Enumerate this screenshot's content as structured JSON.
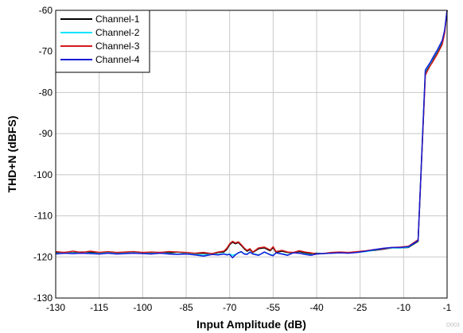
{
  "chart_data": {
    "type": "line",
    "xlabel": "Input Amplitude (dB)",
    "ylabel": "THD+N (dBFS)",
    "xlim": [
      -130,
      -1
    ],
    "ylim": [
      -130,
      -60
    ],
    "xticks": [
      -130,
      -115,
      -100,
      -85,
      -70,
      -55,
      -40,
      -25,
      -10,
      -1
    ],
    "xtick_labels": [
      "-130",
      "-115",
      "-100",
      "-85",
      "-70",
      "-55",
      "-40",
      "-25",
      "-10",
      "-1"
    ],
    "yticks": [
      -130,
      -120,
      -110,
      -100,
      -90,
      -80,
      -70,
      -60
    ],
    "ytick_labels": [
      "-130",
      "-120",
      "-110",
      "-100",
      "-90",
      "-80",
      "-70",
      "-60"
    ],
    "grid": true,
    "legend_position": "top-left",
    "watermark": "D003",
    "series": [
      {
        "name": "Channel-1",
        "color": "#000000",
        "x": [
          -130,
          -127,
          -124,
          -121,
          -118,
          -115,
          -112,
          -109,
          -106,
          -103,
          -100,
          -97,
          -94,
          -91,
          -88,
          -85,
          -82,
          -79,
          -76,
          -74,
          -72,
          -71,
          -70,
          -69,
          -68,
          -67,
          -66,
          -65,
          -64,
          -63,
          -62,
          -60,
          -58,
          -56,
          -55,
          -54,
          -52,
          -50,
          -48,
          -46,
          -44,
          -42,
          -40,
          -38,
          -35,
          -32,
          -29,
          -26,
          -23,
          -20,
          -17,
          -14,
          -11,
          -9,
          -7,
          -5.5,
          -5,
          -4.5,
          -4,
          -3,
          -2,
          -1.5,
          -1
        ],
        "y": [
          -119,
          -118.9,
          -119,
          -118.8,
          -118.9,
          -119,
          -118.9,
          -119.1,
          -118.9,
          -118.8,
          -119,
          -119,
          -118.9,
          -119,
          -118.8,
          -119,
          -119.2,
          -119.1,
          -119.3,
          -118.9,
          -118.8,
          -118.2,
          -117,
          -116.4,
          -116.8,
          -116.5,
          -117.2,
          -118,
          -118.6,
          -118.2,
          -118.9,
          -118,
          -117.8,
          -118.5,
          -117.7,
          -118.9,
          -118.6,
          -118.9,
          -119,
          -118.7,
          -119,
          -119.2,
          -119.1,
          -119.2,
          -119,
          -118.9,
          -119,
          -118.8,
          -118.6,
          -118.4,
          -118.1,
          -117.8,
          -117.8,
          -117.7,
          -116.2,
          -75,
          -74,
          -73,
          -72,
          -70,
          -68,
          -65,
          -60
        ]
      },
      {
        "name": "Channel-2",
        "color": "#00e5ff",
        "x": [
          -130,
          -127,
          -124,
          -121,
          -118,
          -115,
          -112,
          -109,
          -106,
          -103,
          -100,
          -97,
          -94,
          -91,
          -88,
          -85,
          -82,
          -79,
          -76,
          -74,
          -72,
          -71,
          -70,
          -69,
          -68,
          -67,
          -66,
          -65,
          -64,
          -63,
          -62,
          -60,
          -58,
          -56,
          -55,
          -54,
          -52,
          -50,
          -48,
          -46,
          -44,
          -42,
          -40,
          -38,
          -35,
          -32,
          -29,
          -26,
          -23,
          -20,
          -17,
          -14,
          -11,
          -9,
          -7,
          -5.5,
          -5,
          -4.5,
          -4,
          -3,
          -2,
          -1.5,
          -1
        ],
        "y": [
          -119.2,
          -119,
          -119.1,
          -119,
          -119.1,
          -119.2,
          -119,
          -119.2,
          -119.1,
          -119,
          -119.1,
          -119.2,
          -119,
          -119.2,
          -119.3,
          -119.2,
          -119.4,
          -119.6,
          -119.3,
          -119.4,
          -119.2,
          -119.4,
          -119.3,
          -119.6,
          -119.4,
          -119,
          -118.8,
          -119.2,
          -119.3,
          -118.9,
          -119.2,
          -119.5,
          -118.9,
          -119.4,
          -119.6,
          -119,
          -119.2,
          -119.5,
          -119,
          -119.1,
          -119.3,
          -119.5,
          -119.2,
          -119.2,
          -119.1,
          -119,
          -119,
          -118.9,
          -118.7,
          -118.3,
          -118,
          -117.8,
          -117.8,
          -117.6,
          -116,
          -74.8,
          -73.8,
          -72.9,
          -71.8,
          -69.8,
          -67.5,
          -65,
          -60
        ]
      },
      {
        "name": "Channel-3",
        "color": "#d41a1a",
        "x": [
          -130,
          -127,
          -124,
          -121,
          -118,
          -115,
          -112,
          -109,
          -106,
          -103,
          -100,
          -97,
          -94,
          -91,
          -88,
          -85,
          -82,
          -79,
          -76,
          -74,
          -72,
          -71,
          -70,
          -69,
          -68,
          -67,
          -66,
          -65,
          -64,
          -63,
          -62,
          -60,
          -58,
          -56,
          -55,
          -54,
          -52,
          -50,
          -48,
          -46,
          -44,
          -42,
          -40,
          -38,
          -35,
          -32,
          -29,
          -26,
          -23,
          -20,
          -17,
          -14,
          -11,
          -9,
          -7,
          -5.5,
          -5,
          -4.5,
          -4,
          -3,
          -2,
          -1.5,
          -1
        ],
        "y": [
          -118.7,
          -118.9,
          -118.6,
          -118.9,
          -118.6,
          -118.9,
          -118.7,
          -118.9,
          -118.8,
          -118.7,
          -118.9,
          -118.8,
          -118.9,
          -118.7,
          -118.8,
          -118.9,
          -119.1,
          -118.9,
          -119.2,
          -118.8,
          -118.6,
          -117.9,
          -116.8,
          -116.2,
          -116.6,
          -116.3,
          -117,
          -117.8,
          -118.4,
          -118,
          -118.8,
          -117.8,
          -117.6,
          -118.3,
          -117.5,
          -118.7,
          -118.4,
          -118.8,
          -118.9,
          -118.5,
          -118.8,
          -119,
          -119.3,
          -119.2,
          -118.9,
          -118.8,
          -118.9,
          -118.7,
          -118.5,
          -118.2,
          -118,
          -117.7,
          -117.6,
          -117.4,
          -115.8,
          -75.8,
          -74.6,
          -73.5,
          -72.6,
          -70.6,
          -68.3,
          -65.5,
          -60
        ]
      },
      {
        "name": "Channel-4",
        "color": "#1a1ad4",
        "x": [
          -130,
          -127,
          -124,
          -121,
          -118,
          -115,
          -112,
          -109,
          -106,
          -103,
          -100,
          -97,
          -94,
          -91,
          -88,
          -85,
          -82,
          -79,
          -76,
          -74,
          -72,
          -71,
          -70,
          -69,
          -68,
          -67,
          -66,
          -65,
          -64,
          -63,
          -62,
          -60,
          -58,
          -56,
          -55,
          -54,
          -52,
          -50,
          -48,
          -46,
          -44,
          -42,
          -40,
          -38,
          -35,
          -32,
          -29,
          -26,
          -23,
          -20,
          -17,
          -14,
          -11,
          -9,
          -7,
          -5.5,
          -5,
          -4.5,
          -4,
          -3,
          -2,
          -1.5,
          -1
        ],
        "y": [
          -119.3,
          -119.1,
          -119.2,
          -119.1,
          -119.2,
          -119.3,
          -119.1,
          -119.3,
          -119.2,
          -119.1,
          -119.2,
          -119.3,
          -119.1,
          -119.3,
          -119.4,
          -119.3,
          -119.5,
          -119.8,
          -119.4,
          -119.5,
          -119.3,
          -119.5,
          -119.4,
          -120.2,
          -119.5,
          -119,
          -118.7,
          -119.3,
          -119.4,
          -118.8,
          -119.3,
          -119.6,
          -118.8,
          -119.5,
          -119.7,
          -119,
          -119.3,
          -119.6,
          -119,
          -119.1,
          -119.4,
          -119.6,
          -119.3,
          -119.2,
          -119.1,
          -119,
          -119.1,
          -118.9,
          -118.6,
          -118.2,
          -117.9,
          -117.7,
          -117.7,
          -117.5,
          -116,
          -74.5,
          -73.6,
          -72.7,
          -71.6,
          -69.6,
          -67.3,
          -64.8,
          -60
        ]
      }
    ]
  }
}
